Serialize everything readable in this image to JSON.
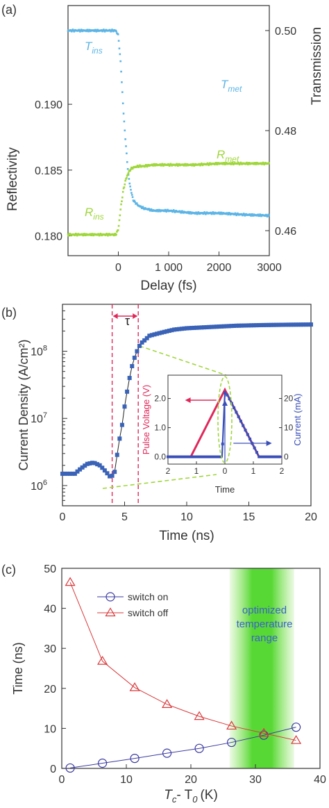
{
  "panels": {
    "a": {
      "label": "(a)",
      "xlabel": "Delay (fs)",
      "ylabel_left": "Reflectivity",
      "ylabel_right": "Transmission",
      "annotations": {
        "t_ins": {
          "main": "T",
          "sub": "ins"
        },
        "t_met": {
          "main": "T",
          "sub": "met"
        },
        "r_met": {
          "main": "R",
          "sub": "met"
        },
        "r_ins": {
          "main": "R",
          "sub": "ins"
        }
      }
    },
    "b": {
      "label": "(b)",
      "xlabel": "Time (ns)",
      "ylabel": "Current Density (A/cm²)",
      "tau_label": "τ",
      "inset": {
        "xlabel": "Time",
        "ylabel_left": "Pulse Voltage (V)",
        "ylabel_right": "Current (mA)"
      }
    },
    "c": {
      "label": "(c)",
      "xlabel_main": "T",
      "xlabel_sub1": "c",
      "xlabel_mid": "- T",
      "xlabel_sub2": "0",
      "xlabel_end": "(K)",
      "ylabel": "Time (ns)",
      "band_text": [
        "optimized",
        "temperature",
        "range"
      ]
    }
  },
  "chart_data": [
    {
      "type": "line",
      "panel": "a",
      "xlim": [
        -1000,
        3000
      ],
      "xticks": [
        0,
        1000,
        2000,
        3000
      ],
      "xtick_labels": [
        "0",
        "1 000",
        "2000",
        "3000"
      ],
      "y_left": {
        "ticks": [
          0.18,
          0.185,
          0.19
        ],
        "tick_labels": [
          "0.180",
          "0.185",
          "0.190"
        ],
        "lim": [
          0.1785,
          0.1975
        ]
      },
      "y_right": {
        "ticks": [
          0.46,
          0.48,
          0.5
        ],
        "tick_labels": [
          "0.46",
          "0.48",
          "0.50"
        ],
        "lim": [
          0.455,
          0.505
        ]
      },
      "series": [
        {
          "name": "Transmission",
          "axis": "right",
          "color": "#5bb4e6",
          "x": [
            -1000,
            -50,
            0,
            50,
            100,
            150,
            200,
            250,
            300,
            400,
            500,
            700,
            1000,
            1500,
            2000,
            2500,
            3000
          ],
          "y": [
            0.5,
            0.5,
            0.499,
            0.493,
            0.484,
            0.477,
            0.471,
            0.468,
            0.466,
            0.465,
            0.4645,
            0.464,
            0.464,
            0.4635,
            0.4635,
            0.4632,
            0.463
          ]
        },
        {
          "name": "Reflectivity",
          "axis": "left",
          "color": "#9fd63a",
          "x": [
            -1000,
            -50,
            0,
            50,
            100,
            150,
            200,
            250,
            300,
            400,
            500,
            700,
            1000,
            1500,
            2000,
            2500,
            3000
          ],
          "y": [
            0.1801,
            0.1801,
            0.1805,
            0.1822,
            0.1835,
            0.1843,
            0.1848,
            0.1851,
            0.1852,
            0.1853,
            0.1853,
            0.1854,
            0.1854,
            0.1854,
            0.1855,
            0.1855,
            0.1855
          ]
        }
      ]
    },
    {
      "type": "scatter",
      "panel": "b",
      "xlim": [
        0,
        20
      ],
      "xticks": [
        0,
        5,
        10,
        15,
        20
      ],
      "yscale": "log",
      "ylim": [
        500000,
        500000000
      ],
      "ytick_labels": [
        "10^6",
        "10^7",
        "10^8"
      ],
      "tau_markers": [
        4,
        6.1
      ],
      "series": [
        {
          "name": "Current density",
          "color": "#3a63b8",
          "x": [
            0,
            0.5,
            1,
            1.5,
            2,
            2.5,
            3,
            3.5,
            3.9,
            4.2,
            4.5,
            4.8,
            5.0,
            5.2,
            5.4,
            5.6,
            5.8,
            6.0,
            6.3,
            6.7,
            7,
            8,
            9,
            10,
            12,
            14,
            16,
            18,
            20
          ],
          "y": [
            1500000,
            1500000,
            1500000,
            1800000,
            2100000,
            2200000,
            2000000,
            1600000,
            1300000,
            1600000,
            3500000,
            8000000,
            15000000,
            25000000,
            40000000,
            60000000,
            80000000,
            100000000,
            130000000,
            150000000,
            170000000,
            190000000,
            210000000,
            220000000,
            230000000,
            240000000,
            245000000,
            248000000,
            250000000
          ]
        }
      ],
      "inset": {
        "type": "line",
        "xlim": [
          -2,
          2
        ],
        "xtick_labels": [
          "2",
          "1",
          "0",
          "1",
          "2"
        ],
        "y_left_ticks": [
          "0.0",
          "1.0",
          "2.0"
        ],
        "y_right_ticks": [
          "0",
          "10",
          "20"
        ],
        "series": [
          {
            "name": "Pulse voltage",
            "axis": "left",
            "color": "#e0285a",
            "x": [
              -2,
              -1.2,
              0,
              1.2,
              2
            ],
            "y": [
              0,
              0,
              2.3,
              0,
              0
            ]
          },
          {
            "name": "Current",
            "axis": "right",
            "color": "#3a4fb8",
            "x": [
              -2,
              -0.1,
              0,
              0.1,
              1.2,
              2
            ],
            "y": [
              0,
              0,
              22,
              21,
              0,
              0
            ]
          }
        ]
      }
    },
    {
      "type": "line",
      "panel": "c",
      "xlim": [
        0,
        40
      ],
      "ylim": [
        0,
        50
      ],
      "xticks": [
        0,
        10,
        20,
        30,
        40
      ],
      "yticks": [
        0,
        10,
        20,
        30,
        40,
        50
      ],
      "band": [
        26,
        36
      ],
      "series": [
        {
          "name": "switch on",
          "color": "#3a3aa0",
          "marker": "circle",
          "x": [
            1.3,
            6.3,
            11.3,
            16.3,
            21.3,
            26.3,
            31.3,
            36.3
          ],
          "y": [
            0.1,
            1.3,
            2.5,
            3.8,
            5.0,
            6.5,
            8.3,
            10.3
          ]
        },
        {
          "name": "switch off",
          "color": "#d9383a",
          "marker": "triangle",
          "x": [
            1.3,
            6.3,
            11.3,
            16.3,
            21.3,
            26.3,
            31.3,
            36.3
          ],
          "y": [
            46.5,
            26.8,
            20.2,
            16.0,
            13.0,
            10.6,
            8.8,
            7.0
          ]
        }
      ]
    }
  ]
}
